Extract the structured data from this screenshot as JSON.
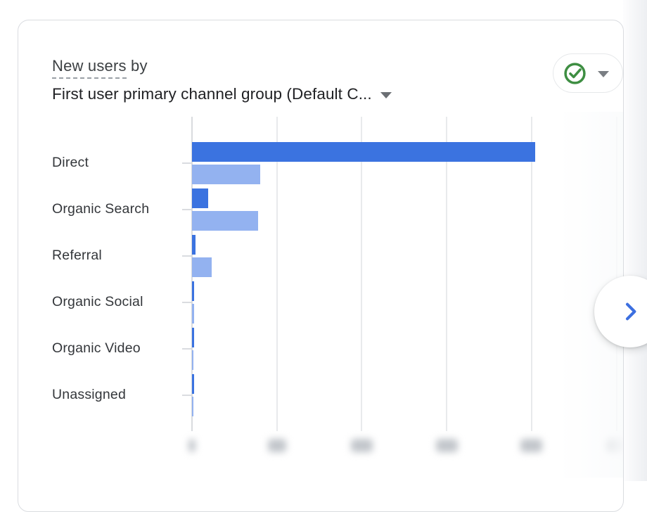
{
  "card": {
    "title_metric": "New users",
    "title_connector": " by",
    "title_dimension": "First user primary channel group (Default C...",
    "dimension_truncated": true,
    "status_pill": {
      "state": "ok",
      "check_color": "#3e8e42"
    },
    "next_button": {
      "chevron_color": "#3c6fe0"
    }
  },
  "chart_data": {
    "type": "bar",
    "orientation": "horizontal",
    "title": "New users by First user primary channel group (Default Channel Group)",
    "categories": [
      "Direct",
      "Organic Search",
      "Referral",
      "Organic Social",
      "Organic Video",
      "Unassigned"
    ],
    "series": [
      {
        "name": "primary-period",
        "color": "#3b73e0",
        "values_grid_units": [
          4.04,
          0.19,
          0.04,
          0.025,
          0.025,
          0.025
        ]
      },
      {
        "name": "comparison-period",
        "color": "#93b2f0",
        "values_grid_units": [
          0.8,
          0.78,
          0.23,
          0.025,
          0.018,
          0.015
        ]
      }
    ],
    "x_axis": {
      "tick_count": 6,
      "grid_interval_units": 1,
      "range_units": [
        0,
        5.1
      ],
      "labels_obscured": "axis tick numbers are blurred out in the screenshot",
      "grid": true
    },
    "y_axis": {
      "label": "",
      "grid": false
    },
    "legend": "none",
    "colors": {
      "bar_dark": "#3b73e0",
      "bar_light": "#93b2f0",
      "gridline": "#e8eaec",
      "axis_line": "#d9dbde",
      "category_text": "#33363a",
      "title_text": "#3c4043",
      "dimension_text": "#202124"
    }
  }
}
